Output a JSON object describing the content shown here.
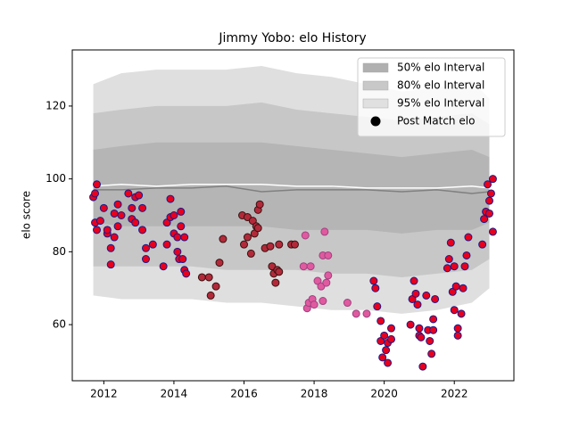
{
  "chart_data": {
    "type": "band_scatter",
    "title": "Jimmy Yobo: elo History",
    "y_label": "elo score",
    "xlim": [
      2011.1,
      2023.7
    ],
    "ylim": [
      44.6,
      135.4
    ],
    "xticks": [
      2012,
      2014,
      2016,
      2018,
      2020,
      2022
    ],
    "yticks": [
      60,
      80,
      100,
      120
    ],
    "legend_position": "upper right",
    "bands": {
      "x": [
        2011.7,
        2012.5,
        2013.5,
        2014.5,
        2015.5,
        2016.5,
        2017.5,
        2018.5,
        2019.5,
        2020.5,
        2021.5,
        2022.5,
        2023.0
      ],
      "series": [
        {
          "name": "95% elo Interval",
          "color": "#e0e0e0",
          "upper": [
            126,
            129,
            130,
            130,
            130,
            131,
            129,
            128,
            126,
            124,
            125,
            127,
            122
          ],
          "lower": [
            68,
            67,
            67,
            67,
            66,
            66,
            65,
            64,
            64,
            63,
            64,
            66,
            70
          ]
        },
        {
          "name": "80% elo Interval",
          "color": "#c8c8c8",
          "upper": [
            118,
            119,
            120,
            120,
            120,
            121,
            119,
            118,
            117,
            116,
            117,
            118,
            115
          ],
          "lower": [
            76,
            76,
            76,
            76,
            75,
            75,
            75,
            74,
            74,
            73,
            74,
            75,
            78
          ]
        },
        {
          "name": "50% elo Interval",
          "color": "#b0b0b0",
          "upper": [
            108,
            109,
            110,
            110,
            110,
            110,
            109,
            108,
            107,
            106,
            107,
            108,
            106
          ],
          "lower": [
            88,
            87,
            87,
            87,
            87,
            87,
            86,
            86,
            86,
            85,
            86,
            86,
            88
          ]
        }
      ]
    },
    "lines": [
      {
        "color": "#ffffff",
        "values": [
          98,
          98.5,
          98,
          98.5,
          98.5,
          98.5,
          98,
          98,
          97.5,
          97.5,
          97.5,
          98,
          97.5
        ]
      },
      {
        "color": "#808080",
        "values": [
          97,
          97,
          97.5,
          97.5,
          98,
          96.5,
          97,
          97,
          97,
          96.5,
          97,
          96,
          96.5
        ]
      }
    ],
    "scatter": {
      "name": "Post Match elo",
      "legend_color": "#000000",
      "groups": [
        {
          "fill": "#e8001c",
          "edge": "#1a1a8c",
          "x": [
            2011.7,
            2011.75,
            2011.8,
            2011.75,
            2011.8,
            2011.9,
            2012.0,
            2012.1,
            2012.1,
            2012.2,
            2012.2,
            2012.3,
            2012.3,
            2012.4,
            2012.5,
            2012.4,
            2012.7,
            2012.8,
            2012.9,
            2012.8,
            2012.9,
            2013.0,
            2013.1,
            2013.1,
            2013.2,
            2013.2,
            2013.4,
            2013.7,
            2013.8,
            2013.8,
            2013.9,
            2013.9,
            2014.0,
            2014.0,
            2014.1,
            2014.1,
            2014.15,
            2014.2,
            2014.2,
            2014.3,
            2014.3,
            2014.35,
            2014.25,
            2019.7,
            2019.75,
            2019.8,
            2019.9,
            2019.9,
            2019.95,
            2020.0,
            2020.05,
            2020.1,
            2020.1,
            2020.2,
            2020.2,
            2020.75,
            2020.8,
            2020.85,
            2020.9,
            2020.95,
            2021.0,
            2021.0,
            2021.05,
            2021.1,
            2021.2,
            2021.25,
            2021.3,
            2021.35,
            2021.4,
            2021.4,
            2021.45,
            2021.8,
            2021.85,
            2021.9,
            2021.95,
            2022.0,
            2022.05,
            2022.0,
            2022.1,
            2022.1,
            2022.2,
            2022.25,
            2022.3,
            2022.35,
            2022.4,
            2022.8,
            2022.85,
            2022.9,
            2023.0,
            2023.0,
            2023.1,
            2023.05,
            2023.1,
            2022.95
          ],
          "y": [
            95,
            96,
            98.5,
            88,
            86,
            88.5,
            92,
            85,
            86,
            81,
            76.5,
            90.5,
            84,
            93,
            90,
            87,
            96,
            92,
            95,
            89,
            88,
            95.5,
            92,
            86,
            81,
            78,
            82,
            76,
            88,
            82,
            94.5,
            89.5,
            90,
            85,
            84,
            80,
            78,
            87,
            91,
            84,
            75,
            74,
            78,
            72,
            70,
            65,
            61,
            55.5,
            51,
            57,
            53,
            49.5,
            55,
            59,
            56,
            60,
            67,
            72,
            68.5,
            65.5,
            59,
            57,
            56.5,
            48.5,
            68,
            58.5,
            55.5,
            52,
            58.5,
            61.5,
            67,
            75.5,
            78,
            82.5,
            69,
            76,
            70.5,
            64,
            57,
            59,
            63,
            70,
            76,
            79,
            84,
            82,
            89,
            91,
            90.5,
            94,
            85.5,
            96,
            100,
            98.5
          ]
        },
        {
          "fill": "#b22a3a",
          "edge": "#3a1010",
          "x": [
            2014.8,
            2015.0,
            2015.05,
            2015.2,
            2015.3,
            2015.4,
            2015.95,
            2016.0,
            2016.1,
            2016.1,
            2016.2,
            2016.25,
            2016.3,
            2016.35,
            2016.4,
            2016.4,
            2016.45,
            2016.6,
            2016.75,
            2016.8,
            2016.85,
            2016.9,
            2016.95,
            2017.0,
            2017.0,
            2017.35,
            2017.45
          ],
          "y": [
            73,
            73,
            68,
            70.5,
            77,
            83.5,
            90,
            82,
            89.5,
            84,
            79.5,
            88.5,
            85,
            87,
            86.5,
            91.5,
            93,
            81,
            81.5,
            76,
            74,
            71.5,
            75,
            74.5,
            82,
            82,
            82
          ]
        },
        {
          "fill": "#e05aa0",
          "edge": "#a04080",
          "x": [
            2017.7,
            2017.75,
            2017.8,
            2017.85,
            2017.9,
            2017.95,
            2018.0,
            2018.1,
            2018.2,
            2018.25,
            2018.25,
            2018.3,
            2018.35,
            2018.4,
            2018.4,
            2018.95,
            2019.2,
            2019.5
          ],
          "y": [
            76,
            84.5,
            64.5,
            66,
            76,
            67,
            65.5,
            72,
            70.5,
            79,
            66.5,
            85.5,
            71.5,
            73.5,
            79,
            66,
            63,
            63
          ]
        }
      ]
    }
  }
}
